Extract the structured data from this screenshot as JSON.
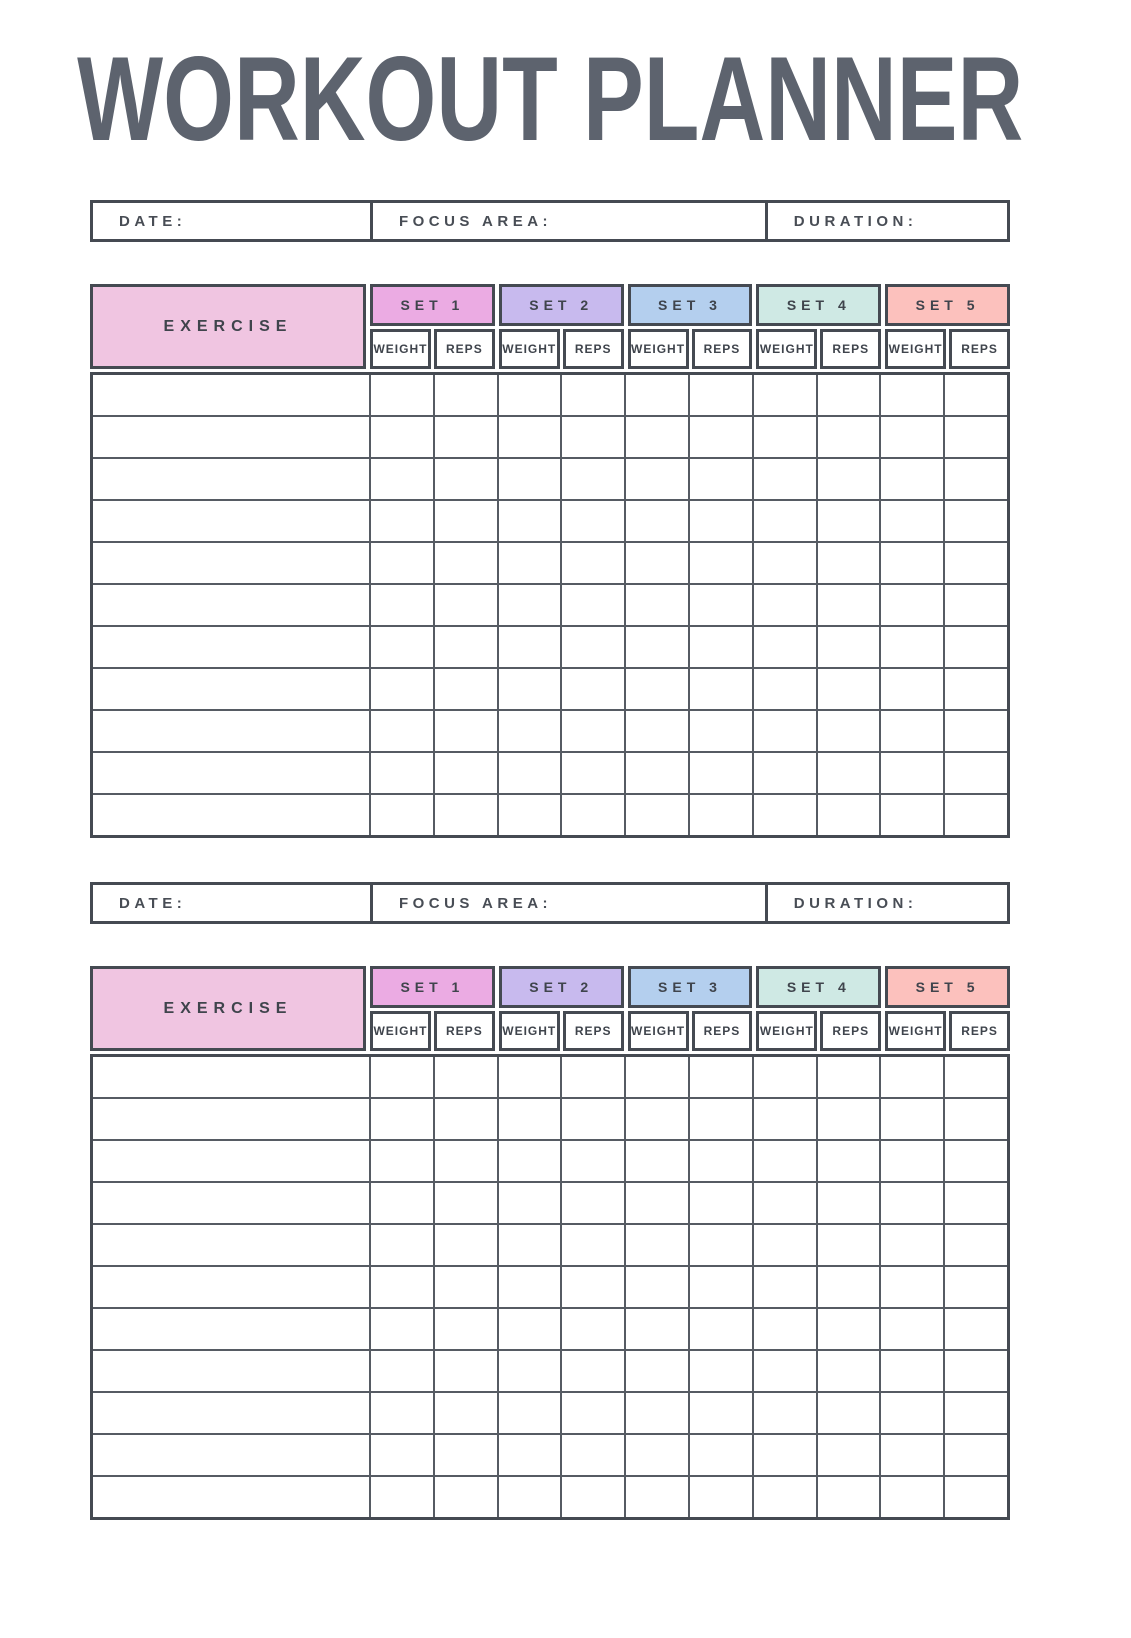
{
  "title": "WORKOUT PLANNER",
  "info_bar": {
    "date_label": "DATE:",
    "focus_area_label": "FOCUS AREA:",
    "duration_label": "DURATION:"
  },
  "table": {
    "exercise_label": "EXERCISE",
    "weight_label": "WEIGHT",
    "reps_label": "REPS",
    "rows": 11,
    "sets": [
      {
        "label": "SET 1",
        "color": "#ebabe3"
      },
      {
        "label": "SET 2",
        "color": "#c8baee"
      },
      {
        "label": "SET 3",
        "color": "#b4cfee"
      },
      {
        "label": "SET 4",
        "color": "#cfe9e4"
      },
      {
        "label": "SET 5",
        "color": "#fcc1bd"
      }
    ]
  },
  "colors": {
    "title_text": "#5d636e",
    "exercise_header_bg": "#f0c5e1",
    "border_dark": "#454a52",
    "grid_line": "#565b63",
    "header_text": "#3f444c"
  },
  "section_count": 2
}
